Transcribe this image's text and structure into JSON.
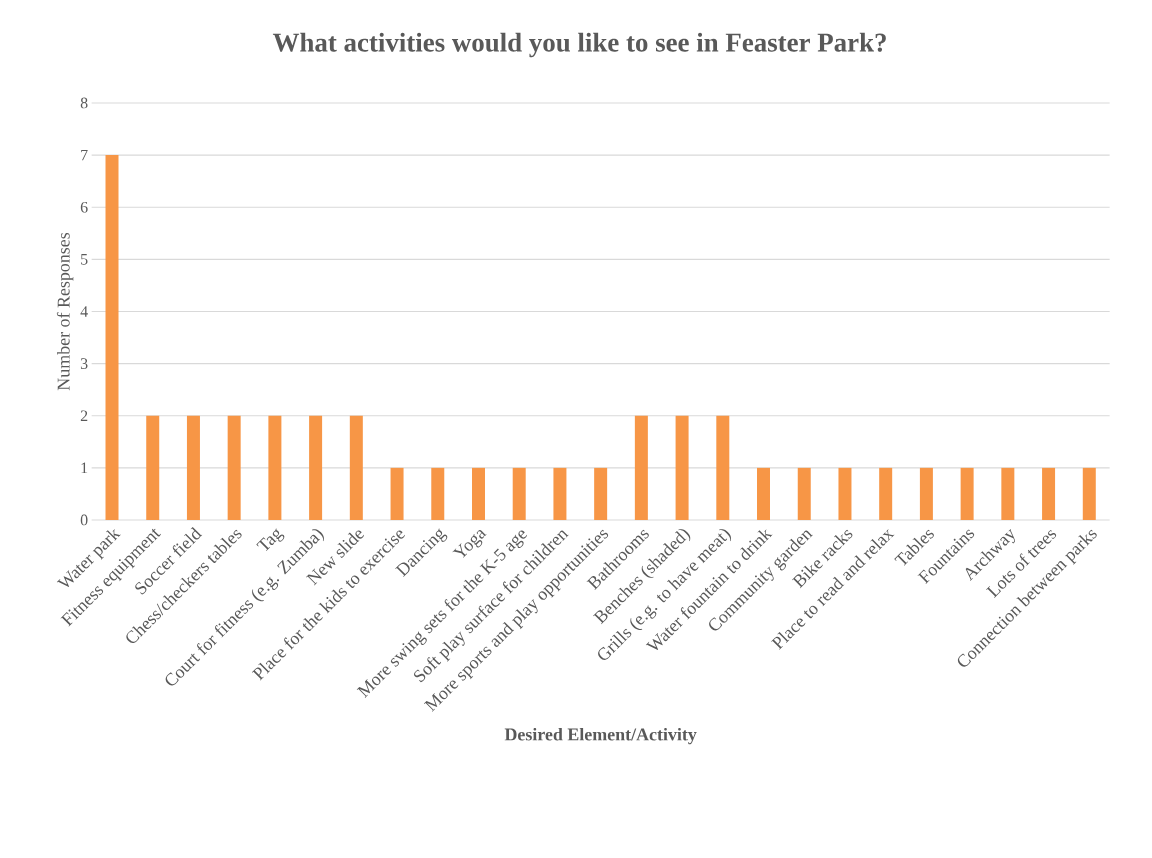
{
  "chart_data": {
    "type": "bar",
    "title": "What activities would you like to see in Feaster Park?",
    "xlabel": "Desired Element/Activity",
    "ylabel": "Number of Responses",
    "categories": [
      "Water park",
      "Fitness equipment",
      "Soccer field",
      "Chess/checkers tables",
      "Tag",
      "Court for fitness (e.g. Zumba)",
      "New slide",
      "Place for the kids to exercise",
      "Dancing",
      "Yoga",
      "More swing sets for the K-5 age",
      "Soft play surface for children",
      "More sports and play opportunities",
      "Bathrooms",
      "Benches (shaded)",
      "Grills (e.g. to have meat)",
      "Water fountain to drink",
      "Community garden",
      "Bike racks",
      "Place to read and relax",
      "Tables",
      "Fountains",
      "Archway",
      "Lots of trees",
      "Connection between parks"
    ],
    "values": [
      7,
      2,
      2,
      2,
      2,
      2,
      2,
      1,
      1,
      1,
      1,
      1,
      1,
      2,
      2,
      2,
      1,
      1,
      1,
      1,
      1,
      1,
      1,
      1,
      1
    ],
    "color": "#f79646",
    "ylim": [
      0,
      8
    ],
    "yticks": [
      0,
      1,
      2,
      3,
      4,
      5,
      6,
      7,
      8
    ],
    "grid": "y"
  }
}
